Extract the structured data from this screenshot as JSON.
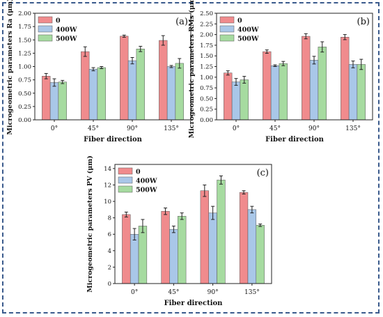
{
  "legend_labels": [
    "0",
    "400W",
    "500W"
  ],
  "colors": {
    "s0": "#f08b8d",
    "s400": "#a9c7e8",
    "s500": "#a6dba0"
  },
  "chart_data": [
    {
      "type": "bar",
      "tag": "(a)",
      "xlabel": "Fiber direction",
      "ylabel": "Microgeometric parameters Ra (μm)",
      "categories": [
        "0°",
        "45°",
        "90°",
        "135°"
      ],
      "ylim": [
        0,
        2.0
      ],
      "yticks": [
        "0.00",
        "0.25",
        "0.50",
        "0.75",
        "1.00",
        "1.25",
        "1.50",
        "1.75",
        "2.00"
      ],
      "legend_position": "top-left",
      "series": [
        {
          "name": "0",
          "values": [
            0.82,
            1.28,
            1.57,
            1.49
          ],
          "errors": [
            0.05,
            0.09,
            0.02,
            0.09
          ]
        },
        {
          "name": "400W",
          "values": [
            0.7,
            0.95,
            1.11,
            1.0
          ],
          "errors": [
            0.07,
            0.03,
            0.06,
            0.02
          ]
        },
        {
          "name": "500W",
          "values": [
            0.71,
            0.98,
            1.33,
            1.06
          ],
          "errors": [
            0.03,
            0.02,
            0.05,
            0.09
          ]
        }
      ]
    },
    {
      "type": "bar",
      "tag": "(b)",
      "xlabel": "Fiber direction",
      "ylabel": "Microgeometric parameters RMs (μm)",
      "categories": [
        "0°",
        "45°",
        "90°",
        "135°"
      ],
      "ylim": [
        0,
        2.5
      ],
      "yticks": [
        "0.00",
        "0.25",
        "0.50",
        "0.75",
        "1.00",
        "1.25",
        "1.50",
        "1.75",
        "2.00",
        "2.25",
        "2.50"
      ],
      "legend_position": "top-left",
      "series": [
        {
          "name": "0",
          "values": [
            1.1,
            1.6,
            1.96,
            1.94
          ],
          "errors": [
            0.05,
            0.04,
            0.06,
            0.06
          ]
        },
        {
          "name": "400W",
          "values": [
            0.89,
            1.27,
            1.4,
            1.3
          ],
          "errors": [
            0.08,
            0.02,
            0.09,
            0.08
          ]
        },
        {
          "name": "500W",
          "values": [
            0.94,
            1.32,
            1.71,
            1.3
          ],
          "errors": [
            0.08,
            0.05,
            0.12,
            0.12
          ]
        }
      ]
    },
    {
      "type": "bar",
      "tag": "(c)",
      "xlabel": "Fiber direction",
      "ylabel": "Microgeometric parameters PV (μm)",
      "categories": [
        "0°",
        "45°",
        "90°",
        "135°"
      ],
      "ylim": [
        0,
        14.5
      ],
      "yticks": [
        "0",
        "2",
        "4",
        "6",
        "8",
        "10",
        "12",
        "14"
      ],
      "legend_position": "top-left",
      "series": [
        {
          "name": "0",
          "values": [
            8.4,
            8.8,
            11.3,
            11.1
          ],
          "errors": [
            0.3,
            0.4,
            0.7,
            0.2
          ]
        },
        {
          "name": "400W",
          "values": [
            6.0,
            6.6,
            8.6,
            9.0
          ],
          "errors": [
            0.7,
            0.4,
            0.8,
            0.4
          ]
        },
        {
          "name": "500W",
          "values": [
            7.0,
            8.2,
            12.6,
            7.1
          ],
          "errors": [
            0.8,
            0.4,
            0.5,
            0.15
          ]
        }
      ]
    }
  ]
}
